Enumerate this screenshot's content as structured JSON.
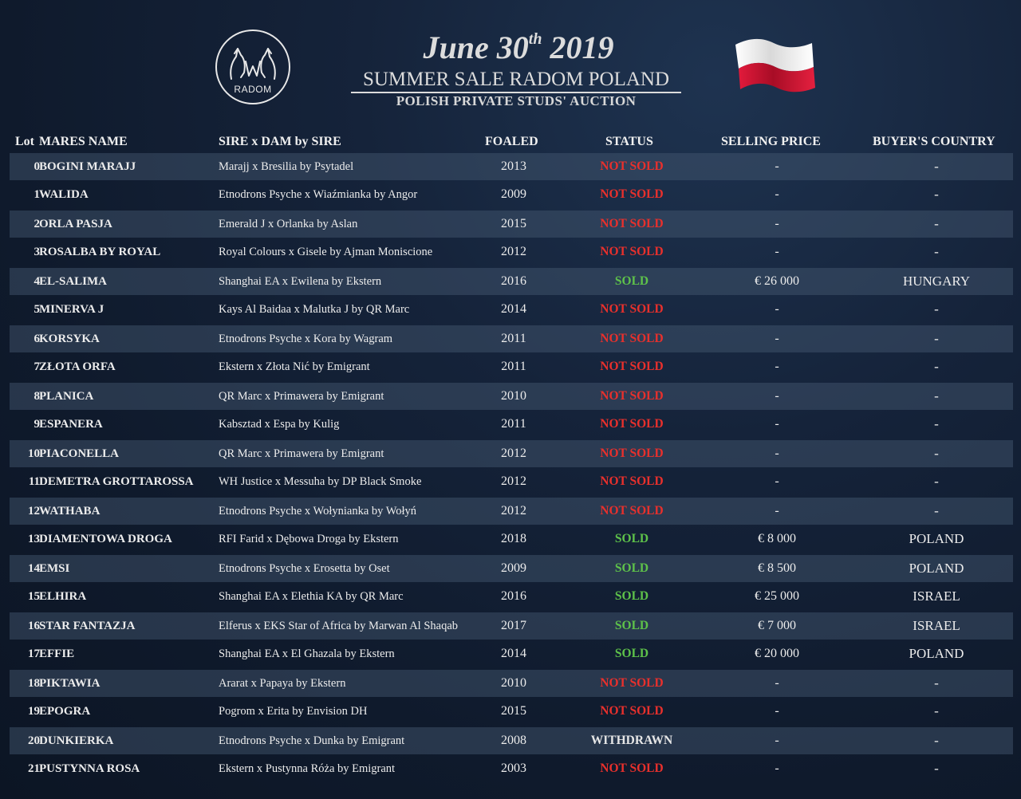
{
  "header": {
    "date_prefix": "June 30",
    "date_suffix": "th",
    "date_year": " 2019",
    "title": "SUMMER SALE RADOM POLAND",
    "subtitle": "POLISH PRIVATE STUDS' AUCTION",
    "logo_text": "RADOM",
    "flag_colors": {
      "top": "#ffffff",
      "bottom": "#dc143c"
    }
  },
  "columns": {
    "lot": "Lot",
    "name": "MARES NAME",
    "pedigree": "SIRE x DAM by SIRE",
    "foaled": "FOALED",
    "status": "STATUS",
    "price": "SELLING PRICE",
    "country": "BUYER'S COUNTRY"
  },
  "status_colors": {
    "NOT SOLD": "#e8302c",
    "SOLD": "#5ec24a",
    "WITHDRAWN": "#e6e6e6"
  },
  "rows": [
    {
      "lot": "0",
      "name": "BOGINI MARAJJ",
      "pedigree": "Marajj x Bresilia by Psytadel",
      "foaled": "2013",
      "status": "NOT SOLD",
      "price": "-",
      "country": "-"
    },
    {
      "lot": "1",
      "name": "WALIDA",
      "pedigree": "Etnodrons Psyche x Wiaźmianka by Angor",
      "foaled": "2009",
      "status": "NOT SOLD",
      "price": "-",
      "country": "-"
    },
    {
      "lot": "2",
      "name": "ORLA PASJA",
      "pedigree": "Emerald J x Orlanka by Aslan",
      "foaled": "2015",
      "status": "NOT SOLD",
      "price": "-",
      "country": "-"
    },
    {
      "lot": "3",
      "name": "ROSALBA BY ROYAL",
      "pedigree": "Royal Colours x Gisele by Ajman Moniscione",
      "foaled": "2012",
      "status": "NOT SOLD",
      "price": "-",
      "country": "-"
    },
    {
      "lot": "4",
      "name": "EL-SALIMA",
      "pedigree": "Shanghai EA x  Ewilena by Ekstern",
      "foaled": "2016",
      "status": "SOLD",
      "price": "€ 26 000",
      "country": "HUNGARY"
    },
    {
      "lot": "5",
      "name": "MINERVA J",
      "pedigree": "Kays Al Baidaa x Malutka J by QR Marc",
      "foaled": "2014",
      "status": "NOT SOLD",
      "price": "-",
      "country": "-"
    },
    {
      "lot": "6",
      "name": "KORSYKA",
      "pedigree": "Etnodrons Psyche x Kora by Wagram",
      "foaled": "2011",
      "status": "NOT SOLD",
      "price": "-",
      "country": "-"
    },
    {
      "lot": "7",
      "name": "ZŁOTA ORFA",
      "pedigree": "Ekstern x Złota Nić by Emigrant",
      "foaled": "2011",
      "status": "NOT SOLD",
      "price": "-",
      "country": "-"
    },
    {
      "lot": "8",
      "name": "PLANICA",
      "pedigree": "QR Marc x Primawera by Emigrant",
      "foaled": "2010",
      "status": "NOT SOLD",
      "price": "-",
      "country": "-"
    },
    {
      "lot": "9",
      "name": "ESPANERA",
      "pedigree": "Kabsztad x Espa by Kulig",
      "foaled": "2011",
      "status": "NOT SOLD",
      "price": "-",
      "country": "-"
    },
    {
      "lot": "10",
      "name": "PIACONELLA",
      "pedigree": "QR Marc x Primawera by Emigrant",
      "foaled": "2012",
      "status": "NOT SOLD",
      "price": "-",
      "country": "-"
    },
    {
      "lot": "11",
      "name": "DEMETRA GROTTAROSSA",
      "pedigree": "WH Justice x Messuha by DP Black Smoke",
      "foaled": "2012",
      "status": "NOT SOLD",
      "price": "-",
      "country": "-"
    },
    {
      "lot": "12",
      "name": "WATHABA",
      "pedigree": "Etnodrons Psyche x Wołynianka by Wołyń",
      "foaled": "2012",
      "status": "NOT SOLD",
      "price": "-",
      "country": "-"
    },
    {
      "lot": "13",
      "name": "DIAMENTOWA DROGA",
      "pedigree": "RFI Farid x Dębowa Droga by Ekstern",
      "foaled": "2018",
      "status": "SOLD",
      "price": "€ 8 000",
      "country": "POLAND"
    },
    {
      "lot": "14",
      "name": "EMSI",
      "pedigree": "Etnodrons Psyche x Erosetta by Oset",
      "foaled": "2009",
      "status": "SOLD",
      "price": "€ 8 500",
      "country": "POLAND"
    },
    {
      "lot": "15",
      "name": "ELHIRA",
      "pedigree": "Shanghai EA x Elethia KA by QR Marc",
      "foaled": "2016",
      "status": "SOLD",
      "price": "€ 25 000",
      "country": "ISRAEL"
    },
    {
      "lot": "16",
      "name": "STAR FANTAZJA",
      "pedigree": "Elferus x EKS Star of Africa by Marwan Al Shaqab",
      "foaled": "2017",
      "status": "SOLD",
      "price": "€ 7 000",
      "country": "ISRAEL"
    },
    {
      "lot": "17",
      "name": "EFFIE",
      "pedigree": "Shanghai EA x  El Ghazala by Ekstern",
      "foaled": "2014",
      "status": "SOLD",
      "price": "€ 20 000",
      "country": "POLAND"
    },
    {
      "lot": "18",
      "name": "PIKTAWIA",
      "pedigree": "Ararat x Papaya by Ekstern",
      "foaled": "2010",
      "status": "NOT SOLD",
      "price": "-",
      "country": "-"
    },
    {
      "lot": "19",
      "name": "EPOGRA",
      "pedigree": "Pogrom x Erita by Envision DH",
      "foaled": "2015",
      "status": "NOT SOLD",
      "price": "-",
      "country": "-"
    },
    {
      "lot": "20",
      "name": "DUNKIERKA",
      "pedigree": "Etnodrons Psyche x Dunka by Emigrant",
      "foaled": "2008",
      "status": "WITHDRAWN",
      "price": "-",
      "country": "-"
    },
    {
      "lot": "21",
      "name": "PUSTYNNA ROSA",
      "pedigree": "Ekstern x Pustynna Róża by Emigrant",
      "foaled": "2003",
      "status": "NOT SOLD",
      "price": "-",
      "country": "-"
    }
  ]
}
